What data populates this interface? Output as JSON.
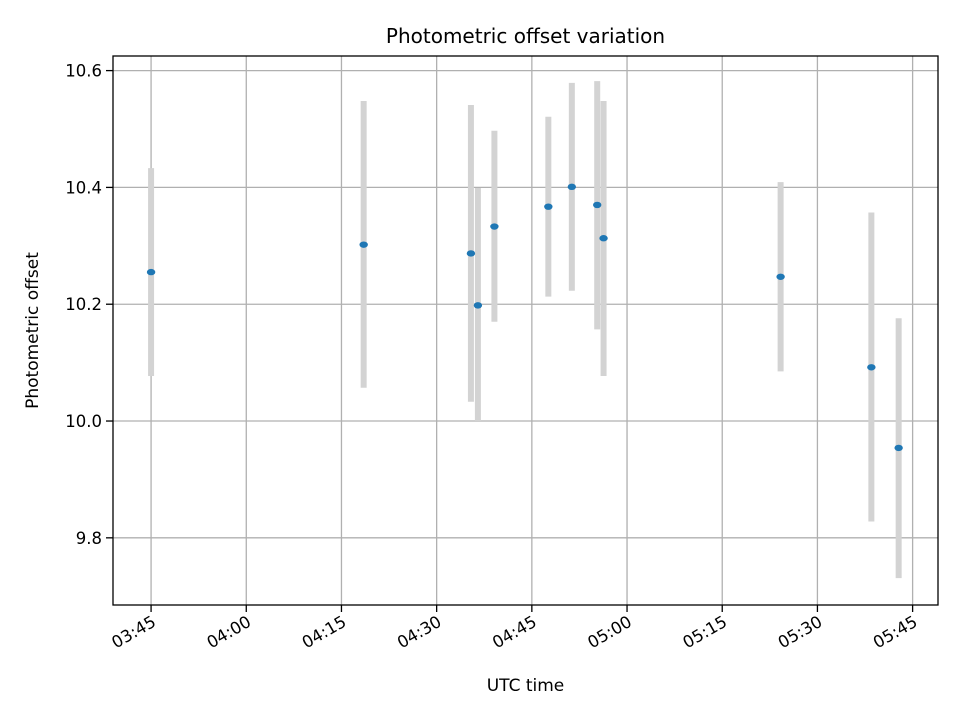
{
  "chart_data": {
    "type": "scatter",
    "title": "Photometric offset variation",
    "xlabel": "UTC time",
    "ylabel": "Photometric offset",
    "grid": true,
    "xlim": [
      "03:39",
      "05:49"
    ],
    "ylim": [
      9.685,
      10.625
    ],
    "x_ticks": [
      "03:45",
      "04:00",
      "04:15",
      "04:30",
      "04:45",
      "05:00",
      "05:15",
      "05:30",
      "05:45"
    ],
    "y_ticks": [
      9.8,
      10.0,
      10.2,
      10.4,
      10.6
    ],
    "y_tick_labels": [
      "9.8",
      "10.0",
      "10.2",
      "10.4",
      "10.6"
    ],
    "marker_color": "#1f77b4",
    "errorbar_color": "#d3d3d3",
    "points": [
      {
        "x": "03:45:00",
        "y": 10.255,
        "ylow": 10.077,
        "yhigh": 10.433
      },
      {
        "x": "04:18:30",
        "y": 10.302,
        "ylow": 10.057,
        "yhigh": 10.548
      },
      {
        "x": "04:35:24",
        "y": 10.287,
        "ylow": 10.033,
        "yhigh": 10.541
      },
      {
        "x": "04:36:30",
        "y": 10.198,
        "ylow": 10.0,
        "yhigh": 10.399
      },
      {
        "x": "04:39:06",
        "y": 10.333,
        "ylow": 10.17,
        "yhigh": 10.497
      },
      {
        "x": "04:47:36",
        "y": 10.367,
        "ylow": 10.213,
        "yhigh": 10.521
      },
      {
        "x": "04:51:18",
        "y": 10.401,
        "ylow": 10.223,
        "yhigh": 10.579
      },
      {
        "x": "04:55:18",
        "y": 10.37,
        "ylow": 10.157,
        "yhigh": 10.582
      },
      {
        "x": "04:56:18",
        "y": 10.313,
        "ylow": 10.077,
        "yhigh": 10.548
      },
      {
        "x": "05:24:12",
        "y": 10.247,
        "ylow": 10.085,
        "yhigh": 10.409
      },
      {
        "x": "05:38:30",
        "y": 10.092,
        "ylow": 9.828,
        "yhigh": 10.357
      },
      {
        "x": "05:42:48",
        "y": 9.954,
        "ylow": 9.731,
        "yhigh": 10.176
      }
    ]
  }
}
